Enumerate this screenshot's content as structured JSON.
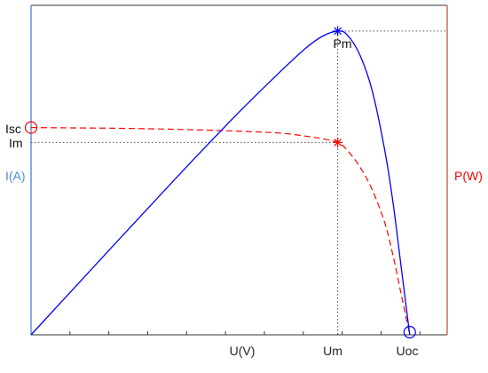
{
  "chart_data": {
    "type": "line",
    "title": "",
    "xlabel": "U(V)",
    "ylabel_left": "I(A)",
    "ylabel_right": "P(W)",
    "grid": false,
    "legend": "none",
    "x_domain": [
      0,
      1
    ],
    "y_domain": [
      0,
      1
    ],
    "x_tick_labels": [
      "U(V)",
      "Um",
      "Uoc"
    ],
    "markers": {
      "pm_label": "Pm",
      "isc_label": "Isc",
      "im_label": "Im",
      "um_label": "Um",
      "uoc_label": "Uoc"
    },
    "key_points": {
      "Um": 0.737,
      "Uoc": 0.91,
      "Pm": 0.922,
      "Isc": 0.629,
      "Im": 0.584
    },
    "series": [
      {
        "name": "P(W)",
        "color": "#0000ff",
        "style": "solid",
        "x": [
          0.0,
          0.1,
          0.2,
          0.3,
          0.4,
          0.5,
          0.6,
          0.66,
          0.7,
          0.737,
          0.76,
          0.79,
          0.82,
          0.85,
          0.87,
          0.89,
          0.91
        ],
        "y": [
          0.0,
          0.137,
          0.274,
          0.41,
          0.545,
          0.676,
          0.8,
          0.87,
          0.906,
          0.922,
          0.91,
          0.85,
          0.74,
          0.56,
          0.4,
          0.2,
          0.0
        ]
      },
      {
        "name": "I(A)",
        "color": "#ff0000",
        "style": "dashed",
        "x": [
          0.0,
          0.1,
          0.2,
          0.3,
          0.4,
          0.5,
          0.6,
          0.66,
          0.7,
          0.737,
          0.76,
          0.79,
          0.82,
          0.85,
          0.87,
          0.89,
          0.91
        ],
        "y": [
          0.629,
          0.628,
          0.627,
          0.625,
          0.622,
          0.618,
          0.612,
          0.603,
          0.595,
          0.584,
          0.56,
          0.51,
          0.44,
          0.34,
          0.24,
          0.12,
          0.0
        ]
      }
    ]
  },
  "colors": {
    "left_axis": "#4a8fd6",
    "right_axis": "#d0643e",
    "frame": "#333333",
    "power": "#0000ff",
    "current": "#ff0000",
    "guide": "#333333"
  }
}
